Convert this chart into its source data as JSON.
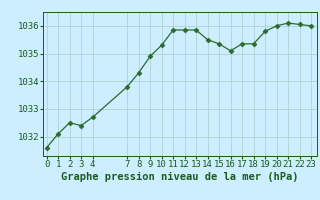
{
  "x": [
    0,
    1,
    2,
    3,
    4,
    7,
    8,
    9,
    10,
    11,
    12,
    13,
    14,
    15,
    16,
    17,
    18,
    19,
    20,
    21,
    22,
    23
  ],
  "y": [
    1031.6,
    1032.1,
    1032.5,
    1032.4,
    1032.7,
    1033.8,
    1034.3,
    1034.9,
    1035.3,
    1035.85,
    1035.85,
    1035.85,
    1035.5,
    1035.35,
    1035.1,
    1035.35,
    1035.35,
    1035.8,
    1036.0,
    1036.1,
    1036.05,
    1036.0
  ],
  "line_color": "#2d6a2d",
  "marker": "D",
  "marker_size": 2.5,
  "bg_color": "#cceeff",
  "grid_color": "#aacccc",
  "xlabel": "Graphe pression niveau de la mer (hPa)",
  "xlabel_color": "#1a5c1a",
  "xlabel_fontsize": 7.5,
  "tick_color": "#1a5c1a",
  "tick_fontsize": 6.5,
  "yticks": [
    1032,
    1033,
    1034,
    1035,
    1036
  ],
  "xticks": [
    0,
    1,
    2,
    3,
    4,
    7,
    8,
    9,
    10,
    11,
    12,
    13,
    14,
    15,
    16,
    17,
    18,
    19,
    20,
    21,
    22,
    23
  ],
  "xlim": [
    -0.3,
    23.5
  ],
  "ylim": [
    1031.3,
    1036.5
  ]
}
